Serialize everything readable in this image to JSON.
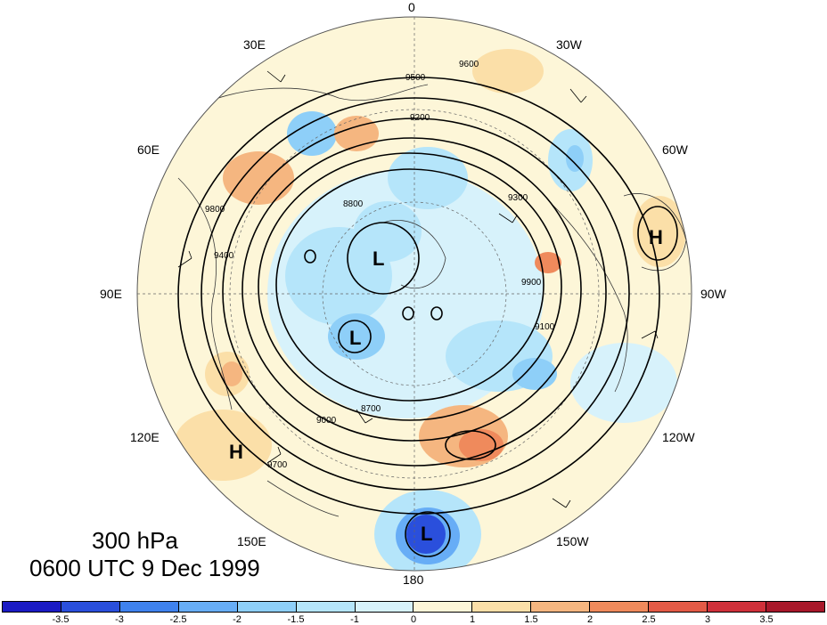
{
  "map": {
    "title_level": "300 hPa",
    "title_time": "0600 UTC 9 Dec 1999",
    "projection": "north-polar-stereographic",
    "longitude_labels": {
      "0": "0",
      "30W": "30W",
      "60W": "60W",
      "90W": "90W",
      "120W": "120W",
      "150W": "150W",
      "180": "180",
      "150E": "150E",
      "120E": "120E",
      "90E": "90E",
      "60E": "60E",
      "30E": "30E"
    },
    "pressure_centers": [
      {
        "type": "L",
        "label": "L"
      },
      {
        "type": "L",
        "label": "L"
      },
      {
        "type": "L",
        "label": "L"
      },
      {
        "type": "H",
        "label": "H"
      },
      {
        "type": "H",
        "label": "H"
      }
    ],
    "contour_labels": [
      "9600",
      "9500",
      "9400",
      "9200",
      "9000",
      "8800",
      "9300",
      "8700",
      "9100",
      "9700",
      "9800",
      "9900"
    ],
    "contour_interval": 100,
    "colors": {
      "land_outline": "#3a3a3a",
      "contour": "#000000",
      "background": "#ffffff"
    }
  },
  "colorbar": {
    "ticks": [
      "-3.5",
      "-3",
      "-2.5",
      "-2",
      "-1.5",
      "-1",
      "0",
      "1",
      "1.5",
      "2",
      "2.5",
      "3",
      "3.5"
    ],
    "colors": [
      "#1b1bc4",
      "#2a4fdc",
      "#3f82ee",
      "#67adf6",
      "#8ecff8",
      "#b5e5fa",
      "#d7f2fb",
      "#fdf6d8",
      "#fbdfa8",
      "#f5b680",
      "#ef8a5c",
      "#e35a46",
      "#cf303a",
      "#a8182a"
    ]
  }
}
